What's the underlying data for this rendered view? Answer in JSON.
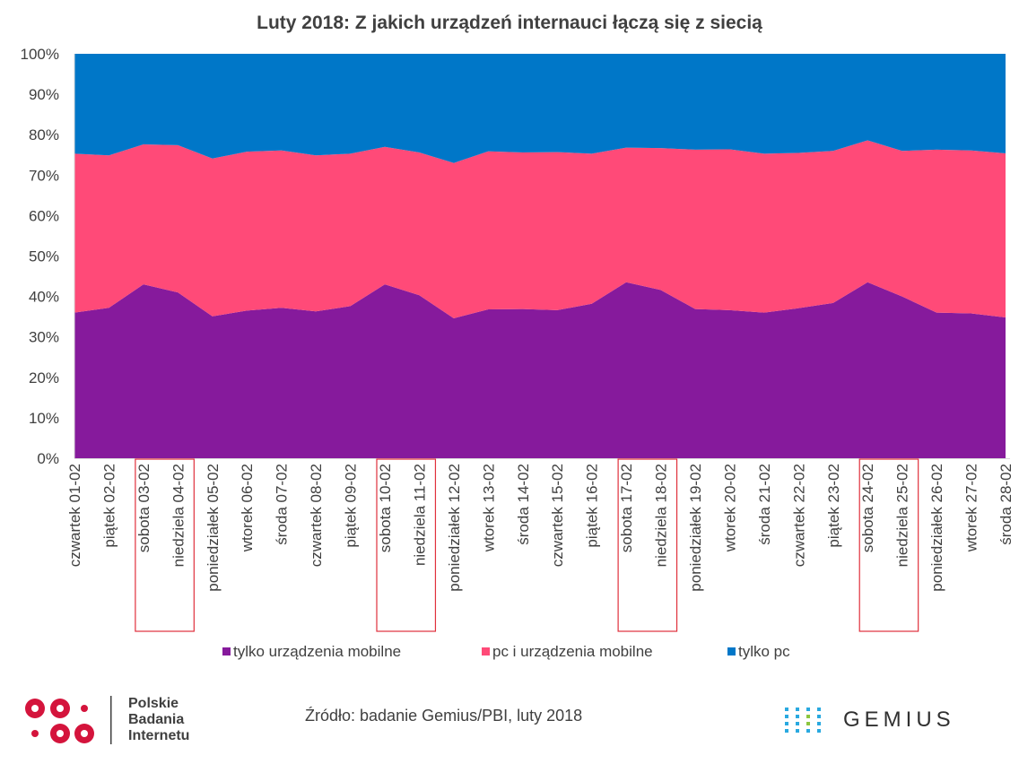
{
  "chart_data": {
    "type": "area",
    "stacked": "percent",
    "title": "Luty 2018: Z jakich urządzeń internauci łączą się z siecią",
    "xlabel": "",
    "ylabel": "",
    "ylim": [
      0,
      100
    ],
    "yticks": [
      "0%",
      "10%",
      "20%",
      "30%",
      "40%",
      "50%",
      "60%",
      "70%",
      "80%",
      "90%",
      "100%"
    ],
    "grid": false,
    "legend_position": "bottom",
    "categories": [
      "czwartek 01-02",
      "piątek 02-02",
      "sobota 03-02",
      "niedziela 04-02",
      "poniedziałek 05-02",
      "wtorek 06-02",
      "środa 07-02",
      "czwartek 08-02",
      "piątek 09-02",
      "sobota 10-02",
      "niedziela 11-02",
      "poniedziałek 12-02",
      "wtorek 13-02",
      "środa 14-02",
      "czwartek 15-02",
      "piątek 16-02",
      "sobota 17-02",
      "niedziela 18-02",
      "poniedziałek 19-02",
      "wtorek 20-02",
      "środa 21-02",
      "czwartek 22-02",
      "piątek 23-02",
      "sobota 24-02",
      "niedziela 25-02",
      "poniedziałek 26-02",
      "wtorek 27-02",
      "środa 28-02"
    ],
    "series": [
      {
        "name": "tylko urządzenia mobilne",
        "color": "#861a9c",
        "values": [
          36.0,
          37.2,
          43.0,
          41.0,
          35.1,
          36.5,
          37.2,
          36.3,
          37.6,
          43.0,
          40.3,
          34.6,
          36.8,
          36.9,
          36.6,
          38.2,
          43.5,
          41.6,
          36.9,
          36.6,
          36.0,
          37.1,
          38.4,
          43.5,
          40.0,
          36.0,
          35.8,
          34.8
        ]
      },
      {
        "name": "pc i urządzenia mobilne",
        "color": "#ff4a78",
        "values": [
          39.3,
          37.7,
          34.6,
          36.4,
          39.0,
          39.3,
          38.9,
          38.6,
          37.7,
          34.0,
          35.3,
          38.4,
          39.1,
          38.7,
          39.1,
          37.1,
          33.3,
          35.1,
          39.4,
          39.8,
          39.3,
          38.4,
          37.6,
          35.1,
          36.0,
          40.3,
          40.3,
          40.6
        ]
      },
      {
        "name": "tylko pc",
        "color": "#0077c8",
        "values": [
          24.7,
          25.1,
          22.4,
          22.6,
          25.9,
          24.2,
          23.9,
          25.1,
          24.7,
          23.0,
          24.4,
          27.0,
          24.1,
          24.4,
          24.3,
          24.7,
          23.2,
          23.3,
          23.7,
          23.6,
          24.7,
          24.5,
          24.0,
          21.4,
          24.0,
          23.7,
          23.9,
          24.6
        ]
      }
    ],
    "highlighted_weekends": [
      [
        "sobota 03-02",
        "niedziela 04-02"
      ],
      [
        "sobota 10-02",
        "niedziela 11-02"
      ],
      [
        "sobota 17-02",
        "niedziela 18-02"
      ],
      [
        "sobota 24-02",
        "niedziela 25-02"
      ]
    ],
    "highlight_color": "#e0303c"
  },
  "footer": {
    "source": "Źródło: badanie Gemius/PBI, luty 2018",
    "pbi_lines": [
      "Polskie",
      "Badania",
      "Internetu"
    ],
    "pbi_color": "#d4143c",
    "gemius_name": "GEMIUS",
    "gemius_dot_color": "#29a9e0",
    "gemius_accent_color": "#8cc63f"
  }
}
